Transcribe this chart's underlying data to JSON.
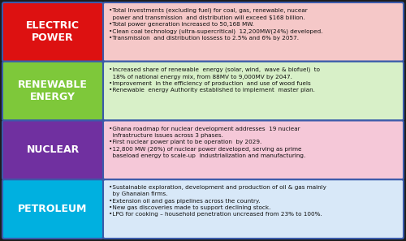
{
  "background_color": "#1c1c1c",
  "border_color": "#3a5aaa",
  "rows": [
    {
      "label": "ELECTRIC\nPOWER",
      "label_color": "#dd1111",
      "text_color": "#ffffff",
      "content_bg": "#f5c8c8",
      "content_text": "•Total Investments (excluding fuel) for coal, gas, renewable, nucear\n  power and transmission  and distribution will exceed $168 billion.\n•Total power generation increased to 50,168 MW.\n•Clean coal technology (ultra-supercritical)  12,200MW(24%) developed.\n•Transmission  and distribution lossess to 2.5% and 6% by 2057."
    },
    {
      "label": "RENEWABLE\nENERGY",
      "label_color": "#7ec83a",
      "text_color": "#ffffff",
      "content_bg": "#d8f0c8",
      "content_text": "•Increased share of renewable  energy (solar, wind,  wave & biofuel)  to\n  18% of national energy mix, from 88MV to 9,000MV by 2047.\n•Improvement  in the efficiency of production  and use of wood fuels\n•Renewable  energy Authority established to implement  master plan."
    },
    {
      "label": "NUCLEAR",
      "label_color": "#7030a0",
      "text_color": "#ffffff",
      "content_bg": "#f5c8d8",
      "content_text": "•Ghana roadmap for nuclear development addresses  19 nuclear\n  infrastructure issues across 3 phases.\n•First nuclear power plant to be operation  by 2029.\n•12,800 MW (26%) of nuclear power developed, serving as prime\n  baseload energy to scale-up  industrialization and manufacturing."
    },
    {
      "label": "PETROLEUM",
      "label_color": "#00b0e0",
      "text_color": "#ffffff",
      "content_bg": "#d8e8f8",
      "content_text": "•Sustainable exploration, development and production of oil & gas mainly\n  by Ghanaian firms.\n•Extension oil and gas pipelines across the country.\n•New gas discoveries made to support declining stock.\n•LPG for cooking – household penetration uncreased from 23% to 100%."
    }
  ]
}
